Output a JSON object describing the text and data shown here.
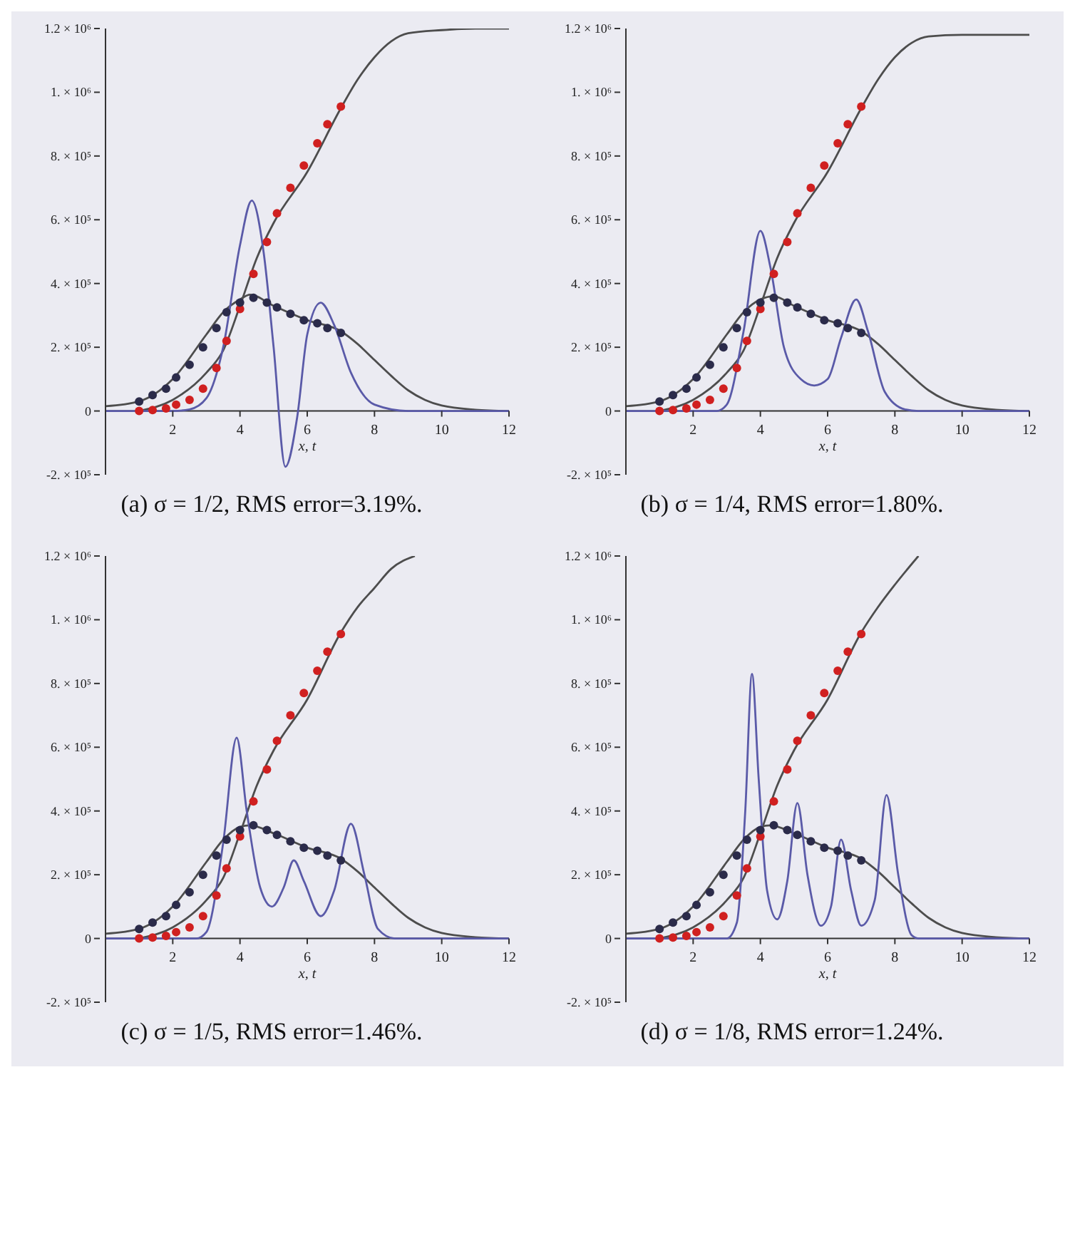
{
  "chart_data": [
    {
      "type": "line",
      "title": "(a) σ = 1/2, RMS error=3.19%.",
      "xlabel": "x, t",
      "xlim": [
        0,
        12
      ],
      "ylim": [
        -200000,
        1200000
      ],
      "xticks": [
        2,
        4,
        6,
        8,
        10,
        12
      ],
      "yticks": [
        {
          "value": -200000,
          "label": "-2. × 10⁵"
        },
        {
          "value": 0,
          "label": "0"
        },
        {
          "value": 200000,
          "label": "2. × 10⁵"
        },
        {
          "value": 400000,
          "label": "4. × 10⁵"
        },
        {
          "value": 600000,
          "label": "6. × 10⁵"
        },
        {
          "value": 800000,
          "label": "8. × 10⁵"
        },
        {
          "value": 1000000,
          "label": "1. × 10⁶"
        },
        {
          "value": 1200000,
          "label": "1.2 × 10⁶"
        }
      ],
      "grid": false,
      "legend": false,
      "series": [
        {
          "type": "line",
          "color": "#4d4d4d",
          "x": [
            1,
            2,
            3,
            3.5,
            4,
            4.5,
            5,
            6,
            7,
            7.5,
            8,
            8.5,
            9,
            10,
            11,
            12
          ],
          "values": [
            0,
            35000,
            120000,
            190000,
            330000,
            480000,
            590000,
            750000,
            950000,
            1040000,
            1110000,
            1160000,
            1185000,
            1195000,
            1200000,
            1200000
          ]
        },
        {
          "type": "line",
          "color": "#4d4d4d",
          "x": [
            0,
            1,
            2,
            3,
            3.5,
            4,
            4.3,
            5,
            6,
            7,
            7.5,
            8,
            8.5,
            9,
            9.5,
            10,
            11,
            12
          ],
          "values": [
            15000,
            30000,
            100000,
            240000,
            310000,
            350000,
            365000,
            330000,
            285000,
            250000,
            210000,
            160000,
            110000,
            65000,
            35000,
            17000,
            4000,
            0
          ]
        },
        {
          "type": "line",
          "color": "#5a5aa8",
          "x": [
            0,
            2,
            2.5,
            3,
            3.5,
            4,
            4.35,
            4.7,
            5,
            5.35,
            5.7,
            6,
            6.4,
            6.8,
            7.3,
            8,
            9,
            12
          ],
          "values": [
            0,
            0,
            5000,
            40000,
            200000,
            520000,
            660000,
            500000,
            200000,
            -175000,
            -20000,
            240000,
            340000,
            270000,
            120000,
            20000,
            0,
            0
          ]
        },
        {
          "type": "scatter",
          "marker": "circle",
          "color": "#d02020",
          "x": [
            1,
            1.4,
            1.8,
            2.1,
            2.5,
            2.9,
            3.3,
            3.6,
            4,
            4.4,
            4.8,
            5.1,
            5.5,
            5.9,
            6.3,
            6.6,
            7
          ],
          "values": [
            0,
            3000,
            8000,
            20000,
            35000,
            70000,
            135000,
            220000,
            320000,
            430000,
            530000,
            620000,
            700000,
            770000,
            840000,
            900000,
            955000
          ]
        },
        {
          "type": "scatter",
          "marker": "circle",
          "color": "#2b2b4a",
          "x": [
            1,
            1.4,
            1.8,
            2.1,
            2.5,
            2.9,
            3.3,
            3.6,
            4,
            4.4,
            4.8,
            5.1,
            5.5,
            5.9,
            6.3,
            6.6,
            7
          ],
          "values": [
            30000,
            50000,
            70000,
            105000,
            145000,
            200000,
            260000,
            310000,
            340000,
            355000,
            340000,
            325000,
            305000,
            285000,
            275000,
            260000,
            245000
          ]
        }
      ]
    },
    {
      "type": "line",
      "title": "(b) σ = 1/4, RMS error=1.80%.",
      "xlabel": "x, t",
      "xlim": [
        0,
        12
      ],
      "ylim": [
        -200000,
        1200000
      ],
      "xticks": [
        2,
        4,
        6,
        8,
        10,
        12
      ],
      "yticks": [
        {
          "value": -200000,
          "label": "-2. × 10⁵"
        },
        {
          "value": 0,
          "label": "0"
        },
        {
          "value": 200000,
          "label": "2. × 10⁵"
        },
        {
          "value": 400000,
          "label": "4. × 10⁵"
        },
        {
          "value": 600000,
          "label": "6. × 10⁵"
        },
        {
          "value": 800000,
          "label": "8. × 10⁵"
        },
        {
          "value": 1000000,
          "label": "1. × 10⁶"
        },
        {
          "value": 1200000,
          "label": "1.2 × 10⁶"
        }
      ],
      "grid": false,
      "legend": false,
      "series": [
        {
          "type": "line",
          "color": "#4d4d4d",
          "x": [
            1,
            2,
            3,
            3.5,
            4,
            4.5,
            5,
            6,
            7,
            7.5,
            8,
            8.5,
            9,
            10,
            11,
            12
          ],
          "values": [
            0,
            35000,
            120000,
            190000,
            330000,
            480000,
            590000,
            750000,
            950000,
            1040000,
            1110000,
            1155000,
            1175000,
            1180000,
            1180000,
            1180000
          ]
        },
        {
          "type": "line",
          "color": "#4d4d4d",
          "x": [
            0,
            1,
            2,
            3,
            3.5,
            4,
            4.4,
            5,
            6,
            7,
            7.5,
            8,
            8.5,
            9,
            9.5,
            10,
            11,
            12
          ],
          "values": [
            15000,
            30000,
            100000,
            240000,
            310000,
            350000,
            360000,
            330000,
            285000,
            250000,
            210000,
            160000,
            110000,
            65000,
            35000,
            17000,
            4000,
            0
          ]
        },
        {
          "type": "line",
          "color": "#5a5aa8",
          "x": [
            0,
            2.7,
            3,
            3.5,
            4,
            4.3,
            4.7,
            5.2,
            5.6,
            6,
            6.4,
            6.85,
            7.2,
            7.7,
            8.3,
            8.7,
            12
          ],
          "values": [
            0,
            0,
            20000,
            250000,
            565000,
            450000,
            200000,
            100000,
            80000,
            100000,
            230000,
            350000,
            250000,
            60000,
            5000,
            0,
            0
          ]
        },
        {
          "type": "scatter",
          "marker": "circle",
          "color": "#d02020",
          "x": [
            1,
            1.4,
            1.8,
            2.1,
            2.5,
            2.9,
            3.3,
            3.6,
            4,
            4.4,
            4.8,
            5.1,
            5.5,
            5.9,
            6.3,
            6.6,
            7
          ],
          "values": [
            0,
            3000,
            8000,
            20000,
            35000,
            70000,
            135000,
            220000,
            320000,
            430000,
            530000,
            620000,
            700000,
            770000,
            840000,
            900000,
            955000
          ]
        },
        {
          "type": "scatter",
          "marker": "circle",
          "color": "#2b2b4a",
          "x": [
            1,
            1.4,
            1.8,
            2.1,
            2.5,
            2.9,
            3.3,
            3.6,
            4,
            4.4,
            4.8,
            5.1,
            5.5,
            5.9,
            6.3,
            6.6,
            7
          ],
          "values": [
            30000,
            50000,
            70000,
            105000,
            145000,
            200000,
            260000,
            310000,
            340000,
            355000,
            340000,
            325000,
            305000,
            285000,
            275000,
            260000,
            245000
          ]
        }
      ]
    },
    {
      "type": "line",
      "title": "(c) σ = 1/5, RMS error=1.46%.",
      "xlabel": "x, t",
      "xlim": [
        0,
        12
      ],
      "ylim": [
        -200000,
        1200000
      ],
      "xticks": [
        2,
        4,
        6,
        8,
        10,
        12
      ],
      "yticks": [
        {
          "value": -200000,
          "label": "-2. × 10⁵"
        },
        {
          "value": 0,
          "label": "0"
        },
        {
          "value": 200000,
          "label": "2. × 10⁵"
        },
        {
          "value": 400000,
          "label": "4. × 10⁵"
        },
        {
          "value": 600000,
          "label": "6. × 10⁵"
        },
        {
          "value": 800000,
          "label": "8. × 10⁵"
        },
        {
          "value": 1000000,
          "label": "1. × 10⁶"
        },
        {
          "value": 1200000,
          "label": "1.2 × 10⁶"
        }
      ],
      "grid": false,
      "legend": false,
      "series": [
        {
          "type": "line",
          "color": "#4d4d4d",
          "x": [
            1,
            2,
            3,
            3.5,
            4,
            4.5,
            5,
            6,
            7,
            7.5,
            8,
            8.5,
            9.2
          ],
          "values": [
            0,
            35000,
            120000,
            190000,
            330000,
            480000,
            590000,
            750000,
            960000,
            1040000,
            1100000,
            1160000,
            1200000
          ]
        },
        {
          "type": "line",
          "color": "#4d4d4d",
          "x": [
            0,
            1,
            2,
            3,
            3.5,
            4,
            4.3,
            5,
            6,
            7,
            7.5,
            8,
            8.5,
            9,
            9.5,
            10,
            11,
            12
          ],
          "values": [
            15000,
            30000,
            100000,
            240000,
            310000,
            350000,
            355000,
            330000,
            285000,
            250000,
            210000,
            160000,
            110000,
            65000,
            35000,
            17000,
            4000,
            0
          ]
        },
        {
          "type": "line",
          "color": "#5a5aa8",
          "x": [
            0,
            2.7,
            3,
            3.5,
            3.9,
            4.2,
            4.6,
            4.95,
            5.3,
            5.6,
            5.9,
            6.4,
            6.8,
            7.3,
            7.7,
            8.1,
            8.6,
            12
          ],
          "values": [
            0,
            0,
            20000,
            300000,
            630000,
            400000,
            160000,
            100000,
            160000,
            245000,
            180000,
            70000,
            150000,
            360000,
            200000,
            30000,
            0,
            0
          ]
        },
        {
          "type": "scatter",
          "marker": "circle",
          "color": "#d02020",
          "x": [
            1,
            1.4,
            1.8,
            2.1,
            2.5,
            2.9,
            3.3,
            3.6,
            4,
            4.4,
            4.8,
            5.1,
            5.5,
            5.9,
            6.3,
            6.6,
            7
          ],
          "values": [
            0,
            3000,
            8000,
            20000,
            35000,
            70000,
            135000,
            220000,
            320000,
            430000,
            530000,
            620000,
            700000,
            770000,
            840000,
            900000,
            955000
          ]
        },
        {
          "type": "scatter",
          "marker": "circle",
          "color": "#2b2b4a",
          "x": [
            1,
            1.4,
            1.8,
            2.1,
            2.5,
            2.9,
            3.3,
            3.6,
            4,
            4.4,
            4.8,
            5.1,
            5.5,
            5.9,
            6.3,
            6.6,
            7
          ],
          "values": [
            30000,
            50000,
            70000,
            105000,
            145000,
            200000,
            260000,
            310000,
            340000,
            355000,
            340000,
            325000,
            305000,
            285000,
            275000,
            260000,
            245000
          ]
        }
      ]
    },
    {
      "type": "line",
      "title": "(d) σ = 1/8, RMS error=1.24%.",
      "xlabel": "x, t",
      "xlim": [
        0,
        12
      ],
      "ylim": [
        -200000,
        1200000
      ],
      "xticks": [
        2,
        4,
        6,
        8,
        10,
        12
      ],
      "yticks": [
        {
          "value": -200000,
          "label": "-2. × 10⁵"
        },
        {
          "value": 0,
          "label": "0"
        },
        {
          "value": 200000,
          "label": "2. × 10⁵"
        },
        {
          "value": 400000,
          "label": "4. × 10⁵"
        },
        {
          "value": 600000,
          "label": "6. × 10⁵"
        },
        {
          "value": 800000,
          "label": "8. × 10⁵"
        },
        {
          "value": 1000000,
          "label": "1. × 10⁶"
        },
        {
          "value": 1200000,
          "label": "1.2 × 10⁶"
        }
      ],
      "grid": false,
      "legend": false,
      "series": [
        {
          "type": "line",
          "color": "#4d4d4d",
          "x": [
            1,
            2,
            3,
            3.5,
            4,
            4.5,
            5,
            6,
            7,
            7.5,
            8,
            8.7
          ],
          "values": [
            0,
            35000,
            120000,
            190000,
            330000,
            480000,
            590000,
            750000,
            960000,
            1040000,
            1110000,
            1200000
          ]
        },
        {
          "type": "line",
          "color": "#4d4d4d",
          "x": [
            0,
            1,
            2,
            3,
            3.5,
            4,
            4.3,
            5,
            6,
            7,
            7.5,
            8,
            8.5,
            9,
            9.5,
            10,
            11,
            12
          ],
          "values": [
            15000,
            30000,
            100000,
            240000,
            310000,
            350000,
            355000,
            330000,
            285000,
            250000,
            210000,
            160000,
            110000,
            65000,
            35000,
            17000,
            4000,
            0
          ]
        },
        {
          "type": "line",
          "color": "#5a5aa8",
          "x": [
            0,
            3,
            3.3,
            3.55,
            3.75,
            3.95,
            4.2,
            4.5,
            4.8,
            5.1,
            5.4,
            5.8,
            6.1,
            6.4,
            6.7,
            7,
            7.4,
            7.75,
            8.1,
            8.5,
            8.7,
            12
          ],
          "values": [
            0,
            0,
            50000,
            400000,
            830000,
            500000,
            150000,
            60000,
            180000,
            425000,
            200000,
            40000,
            100000,
            310000,
            150000,
            40000,
            120000,
            450000,
            200000,
            10000,
            0,
            0
          ]
        },
        {
          "type": "scatter",
          "marker": "circle",
          "color": "#d02020",
          "x": [
            1,
            1.4,
            1.8,
            2.1,
            2.5,
            2.9,
            3.3,
            3.6,
            4,
            4.4,
            4.8,
            5.1,
            5.5,
            5.9,
            6.3,
            6.6,
            7
          ],
          "values": [
            0,
            3000,
            8000,
            20000,
            35000,
            70000,
            135000,
            220000,
            320000,
            430000,
            530000,
            620000,
            700000,
            770000,
            840000,
            900000,
            955000
          ]
        },
        {
          "type": "scatter",
          "marker": "circle",
          "color": "#2b2b4a",
          "x": [
            1,
            1.4,
            1.8,
            2.1,
            2.5,
            2.9,
            3.3,
            3.6,
            4,
            4.4,
            4.8,
            5.1,
            5.5,
            5.9,
            6.3,
            6.6,
            7
          ],
          "values": [
            30000,
            50000,
            70000,
            105000,
            145000,
            200000,
            260000,
            310000,
            340000,
            355000,
            340000,
            325000,
            305000,
            285000,
            275000,
            260000,
            245000
          ]
        }
      ]
    }
  ]
}
